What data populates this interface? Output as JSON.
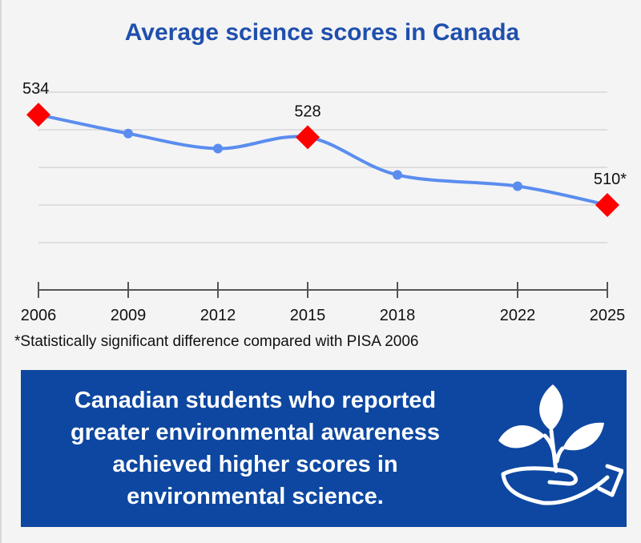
{
  "chart_data": {
    "type": "line",
    "title": "Average science scores in Canada",
    "x": [
      "2006",
      "2009",
      "2012",
      "2015",
      "2018",
      "2022",
      "2025"
    ],
    "values": [
      534,
      529,
      525,
      528,
      518,
      515,
      510
    ],
    "ylim": [
      490,
      550
    ],
    "grid": true,
    "highlighted": [
      {
        "x": "2006",
        "value": 534,
        "label": "534"
      },
      {
        "x": "2015",
        "value": 528,
        "label": "528"
      },
      {
        "x": "2025",
        "value": 510,
        "label": "510*"
      }
    ],
    "footnote": "*Statistically significant difference compared with PISA 2006",
    "colors": {
      "line": "#5b8def",
      "highlight": "#ff0000",
      "title": "#1f4fad"
    }
  },
  "callout": {
    "lines": [
      "Canadian students who reported",
      "greater environmental awareness",
      "achieved higher scores in",
      "environmental science."
    ],
    "icon": "hand-holding-plant-icon",
    "color": "#0d47a1"
  }
}
